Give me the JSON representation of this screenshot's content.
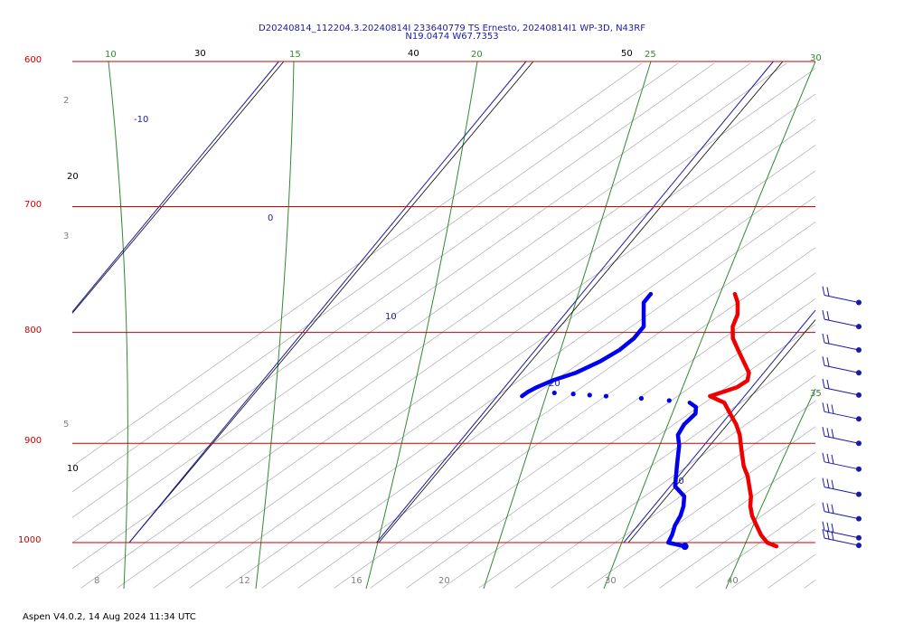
{
  "title_line1": "D20240814_112204.3.20240814I 233640779 TS Ernesto, 20240814I1 WP-3D, N43RF",
  "title_line2": "N19.0474 W67.7353",
  "footer": "Aspen V4.0.2, 14 Aug 2024  11:34 UTC",
  "colors": {
    "isobar": "#cc0000",
    "isotherm": "#1a1aa8",
    "dry_adiabat": "#000000",
    "moist_adiabat": "#2e8b2e",
    "mixing_ratio": "#a0a0a0",
    "temperature": "#ee0000",
    "dewpoint": "#0000ee",
    "wind_barb": "#1a1aa8"
  },
  "chart_data": {
    "type": "skew-t log-p",
    "pressure_levels": [
      {
        "p": 600,
        "label": "600"
      },
      {
        "p": 700,
        "label": "700"
      },
      {
        "p": 800,
        "label": "800"
      },
      {
        "p": 900,
        "label": "900"
      },
      {
        "p": 1000,
        "label": "1000"
      }
    ],
    "isotherm_labels": [
      "-10",
      "0",
      "10",
      "20",
      "30"
    ],
    "dry_adiabat_labels": [
      "30",
      "40",
      "50",
      "20",
      "10"
    ],
    "moist_adiabat_labels": [
      "10",
      "15",
      "20",
      "25",
      "30",
      "35"
    ],
    "mixing_ratio_labels": [
      "2",
      "3",
      "5",
      "8",
      "12",
      "16",
      "20",
      "30",
      "40"
    ],
    "dewpoint_gap_labels": [
      "20",
      "20"
    ],
    "temperature": [
      {
        "p": 768,
        "t": 16.2
      },
      {
        "p": 775,
        "t": 16.6
      },
      {
        "p": 785,
        "t": 17.0
      },
      {
        "p": 795,
        "t": 17.2
      },
      {
        "p": 805,
        "t": 17.6
      },
      {
        "p": 815,
        "t": 18.2
      },
      {
        "p": 825,
        "t": 18.8
      },
      {
        "p": 835,
        "t": 19.4
      },
      {
        "p": 842,
        "t": 19.6
      },
      {
        "p": 848,
        "t": 19.4
      },
      {
        "p": 852,
        "t": 19.0
      },
      {
        "p": 856,
        "t": 18.6
      },
      {
        "p": 862,
        "t": 19.4
      },
      {
        "p": 872,
        "t": 20.0
      },
      {
        "p": 882,
        "t": 20.6
      },
      {
        "p": 892,
        "t": 21.1
      },
      {
        "p": 902,
        "t": 21.5
      },
      {
        "p": 912,
        "t": 21.9
      },
      {
        "p": 922,
        "t": 22.3
      },
      {
        "p": 932,
        "t": 22.8
      },
      {
        "p": 942,
        "t": 23.2
      },
      {
        "p": 952,
        "t": 23.6
      },
      {
        "p": 962,
        "t": 23.9
      },
      {
        "p": 972,
        "t": 24.3
      },
      {
        "p": 982,
        "t": 24.8
      },
      {
        "p": 992,
        "t": 25.3
      },
      {
        "p": 1000,
        "t": 25.8
      },
      {
        "p": 1004,
        "t": 26.3
      }
    ],
    "dewpoint": [
      {
        "p": 768,
        "t": 12.8
      },
      {
        "p": 775,
        "t": 12.8
      },
      {
        "p": 785,
        "t": 13.2
      },
      {
        "p": 795,
        "t": 13.6
      },
      {
        "p": 805,
        "t": 13.6
      },
      {
        "p": 815,
        "t": 13.4
      },
      {
        "p": 825,
        "t": 13.0
      },
      {
        "p": 835,
        "t": 12.4
      },
      {
        "p": 842,
        "t": 11.7
      },
      {
        "p": 848,
        "t": 11.3
      },
      {
        "p": 852,
        "t": 11.1
      },
      {
        "p": 856,
        "t": 11.0
      },
      {
        "p": 860,
        "t": 12.5
      },
      {
        "p": 862,
        "t": 18.0
      },
      {
        "p": 866,
        "t": 18.4
      },
      {
        "p": 872,
        "t": 18.6
      },
      {
        "p": 882,
        "t": 18.5
      },
      {
        "p": 892,
        "t": 18.6
      },
      {
        "p": 902,
        "t": 19.0
      },
      {
        "p": 912,
        "t": 19.3
      },
      {
        "p": 922,
        "t": 19.6
      },
      {
        "p": 932,
        "t": 19.9
      },
      {
        "p": 942,
        "t": 20.2
      },
      {
        "p": 952,
        "t": 20.9
      },
      {
        "p": 962,
        "t": 21.2
      },
      {
        "p": 972,
        "t": 21.4
      },
      {
        "p": 982,
        "t": 21.5
      },
      {
        "p": 992,
        "t": 21.7
      },
      {
        "p": 1000,
        "t": 21.8
      },
      {
        "p": 1004,
        "t": 22.6
      }
    ],
    "dewpoint_gap_points": [
      {
        "p": 853,
        "t": 12.2
      },
      {
        "p": 854,
        "t": 13.0
      },
      {
        "p": 855,
        "t": 13.7
      },
      {
        "p": 856,
        "t": 14.4
      },
      {
        "p": 858,
        "t": 15.9
      },
      {
        "p": 860,
        "t": 17.1
      }
    ],
    "wind_barbs": [
      {
        "p": 775,
        "flags": 2
      },
      {
        "p": 795,
        "flags": 2
      },
      {
        "p": 815,
        "flags": 2
      },
      {
        "p": 835,
        "flags": 2
      },
      {
        "p": 855,
        "flags": 2
      },
      {
        "p": 877,
        "flags": 3
      },
      {
        "p": 900,
        "flags": 3
      },
      {
        "p": 925,
        "flags": 3
      },
      {
        "p": 950,
        "flags": 3
      },
      {
        "p": 975,
        "flags": 3
      },
      {
        "p": 995,
        "flags": 3
      },
      {
        "p": 1003,
        "flags": 3
      }
    ]
  }
}
